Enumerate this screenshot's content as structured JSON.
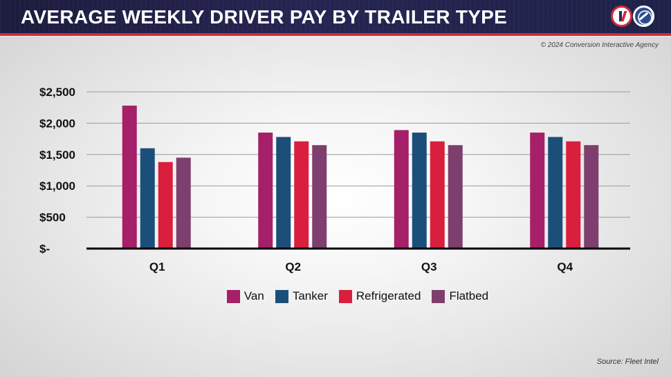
{
  "header": {
    "title": "AVERAGE WEEKLY DRIVER PAY BY TRAILER TYPE"
  },
  "copyright": "© 2024 Conversion Interactive Agency",
  "source": "Source: Fleet Intel",
  "chart_data": {
    "type": "bar",
    "title": "AVERAGE WEEKLY DRIVER PAY BY TRAILER TYPE",
    "categories": [
      "Q1",
      "Q2",
      "Q3",
      "Q4"
    ],
    "series": [
      {
        "name": "Van",
        "color": "#a61f69",
        "values": [
          2280,
          1850,
          1890,
          1850
        ]
      },
      {
        "name": "Tanker",
        "color": "#1b4f7a",
        "values": [
          1600,
          1780,
          1850,
          1780
        ]
      },
      {
        "name": "Refrigerated",
        "color": "#d91f3d",
        "values": [
          1380,
          1710,
          1710,
          1710
        ]
      },
      {
        "name": "Flatbed",
        "color": "#7e3f6e",
        "values": [
          1450,
          1650,
          1650,
          1650
        ]
      }
    ],
    "yticks": [
      0,
      500,
      1000,
      1500,
      2000,
      2500
    ],
    "ytick_labels": [
      "$-",
      "$500",
      "$1,000",
      "$1,500",
      "$2,000",
      "$2,500"
    ],
    "ylim": [
      0,
      2500
    ],
    "xlabel": "",
    "ylabel": "",
    "grid": true,
    "legend_position": "bottom"
  }
}
